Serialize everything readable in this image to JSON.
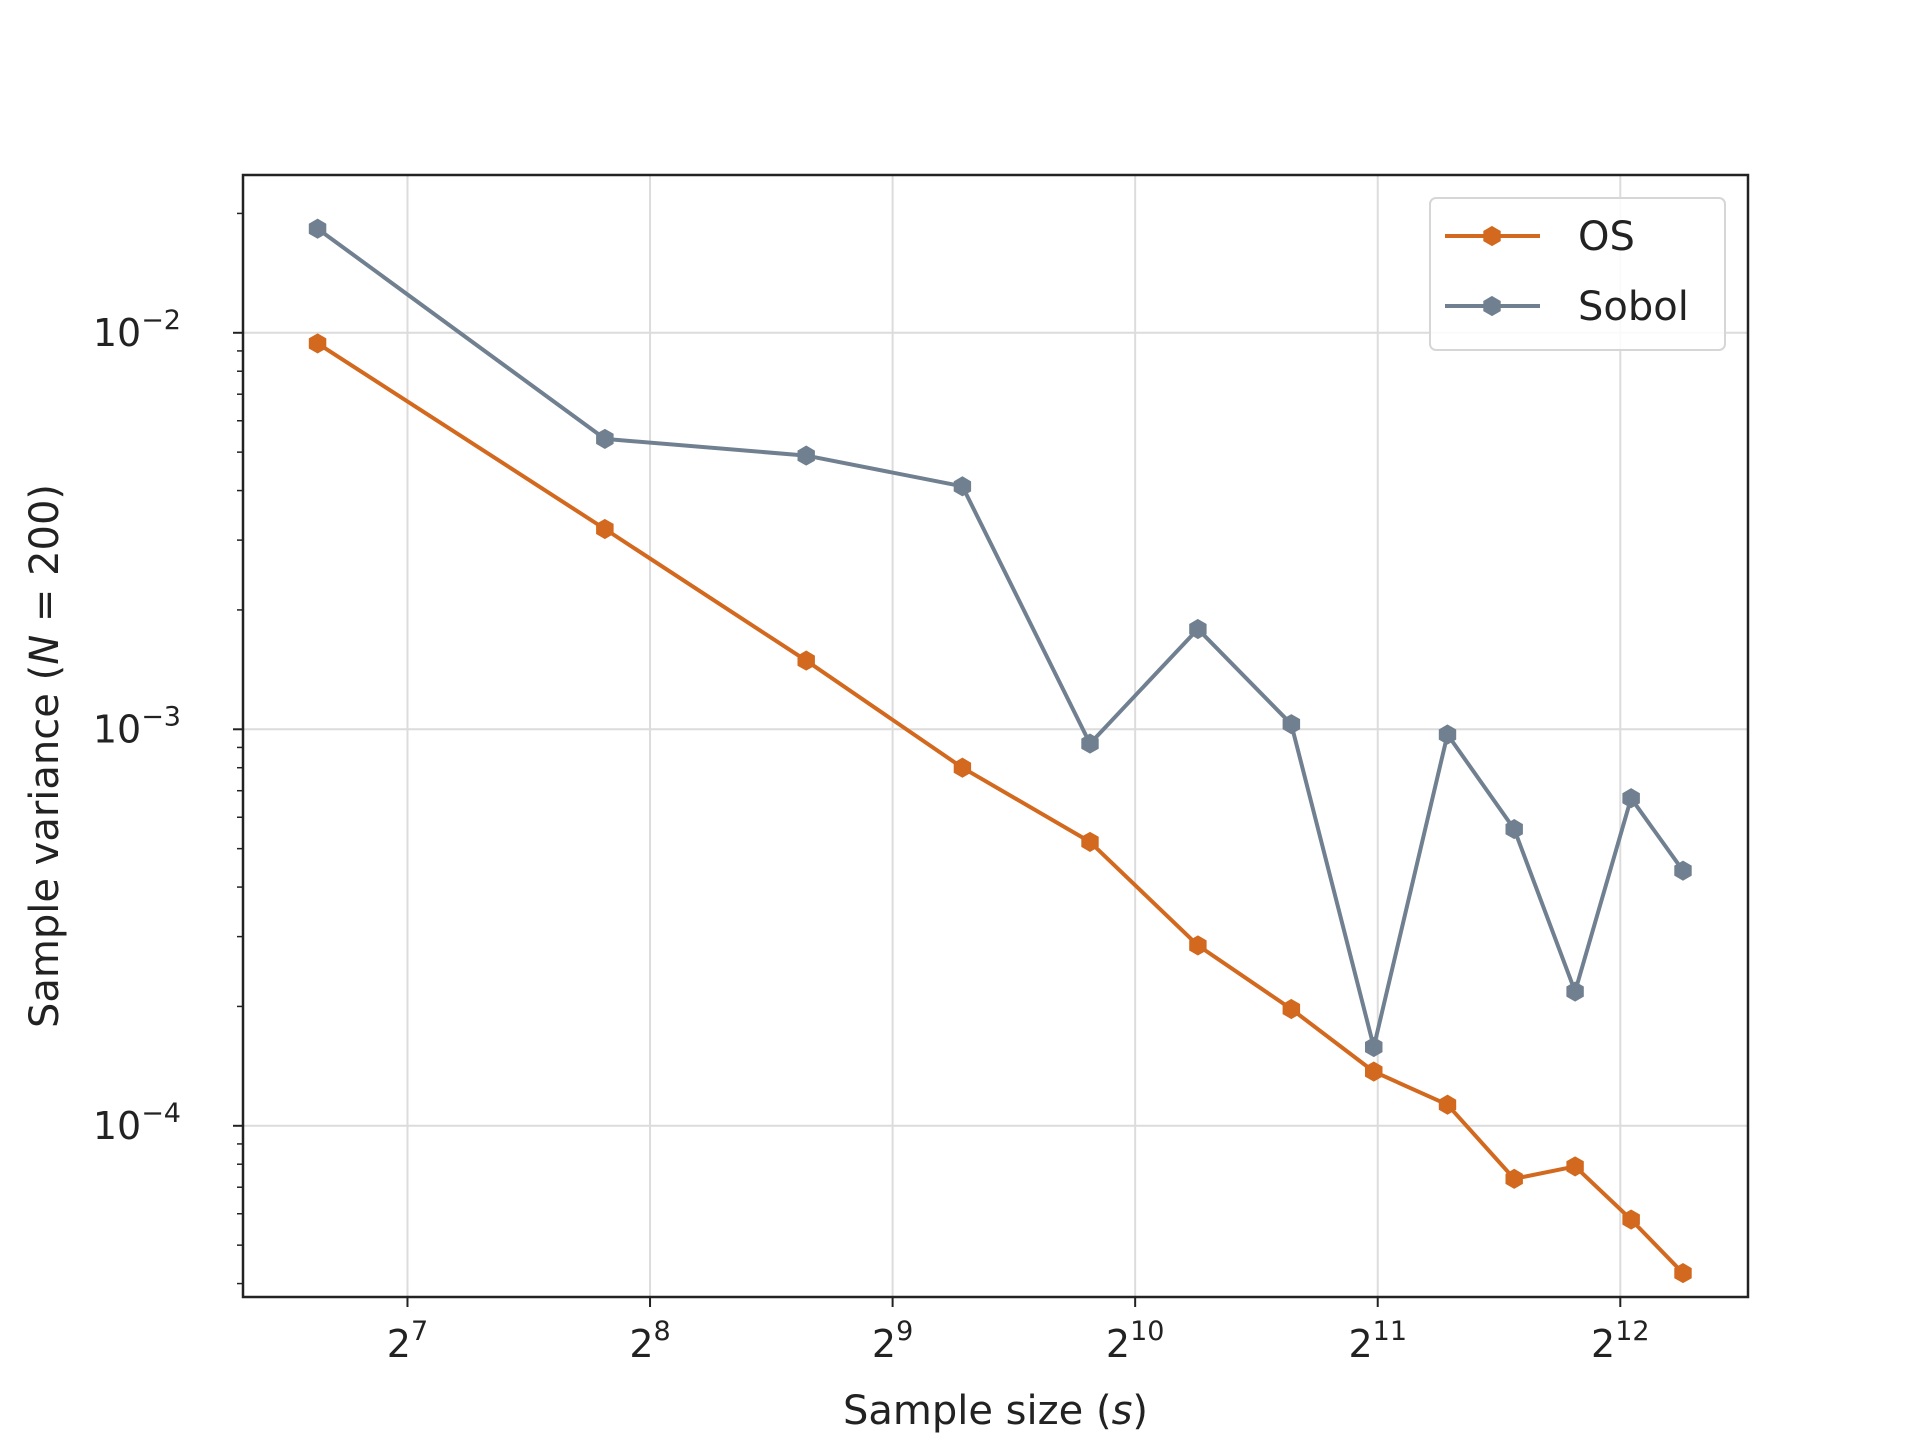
{
  "chart_data": {
    "type": "line",
    "xscale": "log2",
    "yscale": "log10",
    "xlabel": {
      "prefix": "Sample size (",
      "var": "s",
      "suffix": ")"
    },
    "ylabel": {
      "prefix": "Sample variance (",
      "var": "N",
      "suffix": " = 200)"
    },
    "xlim": [
      80.0,
      5900.0
    ],
    "ylim": [
      3.7e-05,
      0.025
    ],
    "xticks": [
      {
        "base": "2",
        "exp": "7",
        "value": 128
      },
      {
        "base": "2",
        "exp": "8",
        "value": 256
      },
      {
        "base": "2",
        "exp": "9",
        "value": 512
      },
      {
        "base": "2",
        "exp": "10",
        "value": 1024
      },
      {
        "base": "2",
        "exp": "11",
        "value": 2048
      },
      {
        "base": "2",
        "exp": "12",
        "value": 4096
      }
    ],
    "yticks": [
      {
        "base": "10",
        "exp": "−2",
        "value": 0.01
      },
      {
        "base": "10",
        "exp": "−3",
        "value": 0.001
      },
      {
        "base": "10",
        "exp": "−4",
        "value": 0.0001
      }
    ],
    "grid": true,
    "legend_position": "top-right",
    "x": [
      99,
      225,
      400,
      625,
      900,
      1225,
      1600,
      2025,
      2500,
      3025,
      3600,
      4225,
      4900
    ],
    "series": [
      {
        "name": "OS",
        "color": "#d2691e",
        "values": [
          0.0094,
          0.0032,
          0.00149,
          0.0008,
          0.00052,
          0.000285,
          0.000197,
          0.000137,
          0.000113,
          7.35e-05,
          7.9e-05,
          5.8e-05,
          4.25e-05
        ]
      },
      {
        "name": "Sobol",
        "color": "#708090",
        "values": [
          0.0183,
          0.0054,
          0.0049,
          0.0041,
          0.00092,
          0.00179,
          0.00103,
          0.000158,
          0.00097,
          0.00056,
          0.000218,
          0.00067,
          0.00044
        ]
      }
    ]
  }
}
